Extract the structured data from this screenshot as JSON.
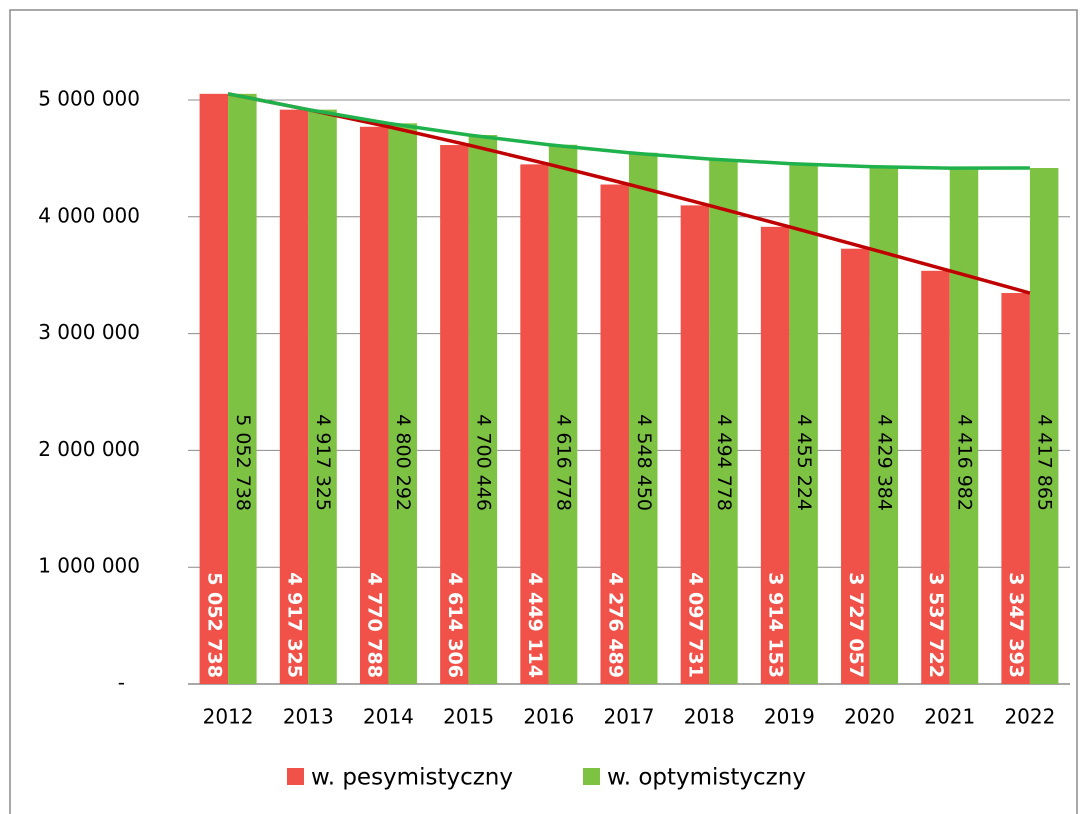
{
  "chart_data": {
    "type": "bar",
    "categories": [
      "2012",
      "2013",
      "2014",
      "2015",
      "2016",
      "2017",
      "2018",
      "2019",
      "2020",
      "2021",
      "2022"
    ],
    "series": [
      {
        "name": "w. pesymistyczny",
        "color": "#f0524a",
        "line_color": "#c00000",
        "label_color": "#ffffff",
        "values": [
          5052738,
          4917325,
          4770788,
          4614306,
          4449114,
          4276489,
          4097731,
          3914153,
          3727057,
          3537722,
          3347393
        ],
        "value_labels": [
          "5 052 738",
          "4 917 325",
          "4 770 788",
          "4 614 306",
          "4 449 114",
          "4 276 489",
          "4 097 731",
          "3 914 153",
          "3 727 057",
          "3 537 722",
          "3 347 393"
        ]
      },
      {
        "name": "w. optymistyczny",
        "color": "#7dc242",
        "line_color": "#1fb14b",
        "label_color": "#000000",
        "values": [
          5052738,
          4917325,
          4800292,
          4700446,
          4616778,
          4548450,
          4494778,
          4455224,
          4429384,
          4416982,
          4417865
        ],
        "value_labels": [
          "5 052 738",
          "4 917 325",
          "4 800 292",
          "4 700 446",
          "4 616 778",
          "4 548 450",
          "4 494 778",
          "4 455 224",
          "4 429 384",
          "4 416 982",
          "4 417 865"
        ]
      }
    ],
    "ylim": [
      0,
      5000000
    ],
    "yticks": [
      {
        "value": 0,
        "label": "-"
      },
      {
        "value": 1000000,
        "label": "1 000 000"
      },
      {
        "value": 2000000,
        "label": "2 000 000"
      },
      {
        "value": 3000000,
        "label": "3 000 000"
      },
      {
        "value": 4000000,
        "label": "4 000 000"
      },
      {
        "value": 5000000,
        "label": "5 000 000"
      }
    ],
    "grid": true,
    "legend": "bottom"
  }
}
